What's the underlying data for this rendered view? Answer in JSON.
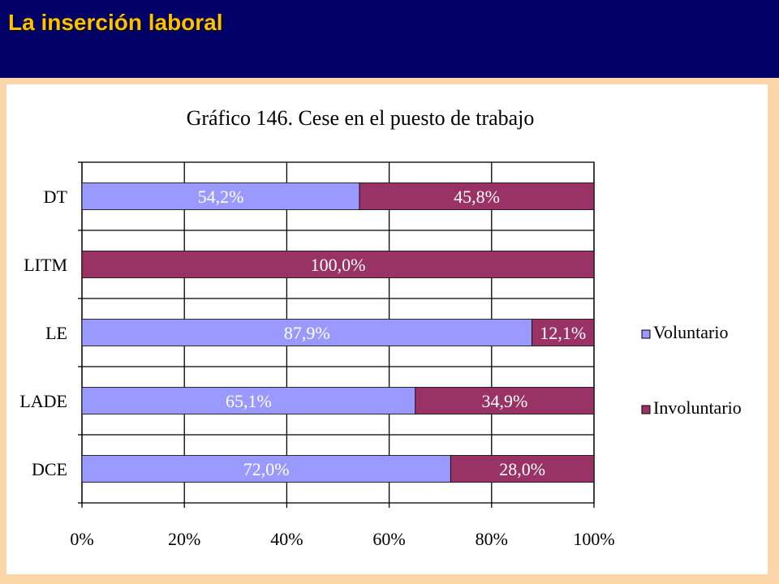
{
  "header": {
    "title": "La inserción laboral"
  },
  "colors": {
    "voluntario": "#9999ff",
    "involuntario": "#993366",
    "header_bg": "#010066",
    "header_text": "#ffc000"
  },
  "chart_data": {
    "type": "bar",
    "orientation": "horizontal",
    "stacked": true,
    "title": "Gráfico 146. Cese en el puesto de trabajo",
    "categories": [
      "DT",
      "LITM",
      "LE",
      "LADE",
      "DCE"
    ],
    "series": [
      {
        "name": "Voluntario",
        "values": [
          54.2,
          0,
          87.9,
          65.1,
          72.0
        ],
        "labels": [
          "54,2%",
          "",
          "87,9%",
          "65,1%",
          "72,0%"
        ]
      },
      {
        "name": "Involuntario",
        "values": [
          45.8,
          100.0,
          12.1,
          34.9,
          28.0
        ],
        "labels": [
          "45,8%",
          "100,0%",
          "12,1%",
          "34,9%",
          "28,0%"
        ]
      }
    ],
    "xticks": [
      "0%",
      "20%",
      "40%",
      "60%",
      "80%",
      "100%"
    ],
    "xlim": [
      0,
      100
    ],
    "grid": true,
    "legend": "right"
  }
}
